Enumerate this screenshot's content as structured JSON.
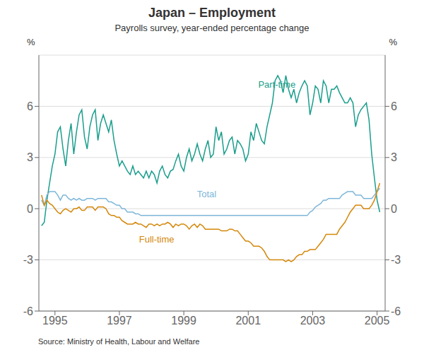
{
  "chart_data": {
    "type": "line",
    "title": "Japan – Employment",
    "subtitle": "Payrolls survey, year-ended percentage change",
    "source": "Source: Ministry of Health, Labour and Welfare",
    "ylabel": "%",
    "y2label": "%",
    "xlim": [
      1994.5,
      2005.25
    ],
    "xticks": [
      1995,
      1997,
      1999,
      2001,
      2003,
      2005
    ],
    "ylim": [
      -6,
      9
    ],
    "yticks": [
      -6,
      -3,
      0,
      3,
      6
    ],
    "y2lim": [
      -6,
      9
    ],
    "y2ticks": [
      -6,
      -3,
      0,
      3,
      6
    ],
    "grid": true,
    "x": [
      1994.583,
      1994.667,
      1994.75,
      1994.833,
      1994.917,
      1995.0,
      1995.083,
      1995.167,
      1995.25,
      1995.333,
      1995.417,
      1995.5,
      1995.583,
      1995.667,
      1995.75,
      1995.833,
      1995.917,
      1996.0,
      1996.083,
      1996.167,
      1996.25,
      1996.333,
      1996.417,
      1996.5,
      1996.583,
      1996.667,
      1996.75,
      1996.833,
      1996.917,
      1997.0,
      1997.083,
      1997.167,
      1997.25,
      1997.333,
      1997.417,
      1997.5,
      1997.583,
      1997.667,
      1997.75,
      1997.833,
      1997.917,
      1998.0,
      1998.083,
      1998.167,
      1998.25,
      1998.333,
      1998.417,
      1998.5,
      1998.583,
      1998.667,
      1998.75,
      1998.833,
      1998.917,
      1999.0,
      1999.083,
      1999.167,
      1999.25,
      1999.333,
      1999.417,
      1999.5,
      1999.583,
      1999.667,
      1999.75,
      1999.833,
      1999.917,
      2000.0,
      2000.083,
      2000.167,
      2000.25,
      2000.333,
      2000.417,
      2000.5,
      2000.583,
      2000.667,
      2000.75,
      2000.833,
      2000.917,
      2001.0,
      2001.083,
      2001.167,
      2001.25,
      2001.333,
      2001.417,
      2001.5,
      2001.583,
      2001.667,
      2001.75,
      2001.833,
      2001.917,
      2002.0,
      2002.083,
      2002.167,
      2002.25,
      2002.333,
      2002.417,
      2002.5,
      2002.583,
      2002.667,
      2002.75,
      2002.833,
      2002.917,
      2003.0,
      2003.083,
      2003.167,
      2003.25,
      2003.333,
      2003.417,
      2003.5,
      2003.583,
      2003.667,
      2003.75,
      2003.833,
      2003.917,
      2004.0,
      2004.083,
      2004.167,
      2004.25,
      2004.333,
      2004.417,
      2004.5,
      2004.583,
      2004.667,
      2004.75,
      2004.833,
      2004.917,
      2005.0,
      2005.083
    ],
    "series": [
      {
        "name": "Part-time",
        "color": "#1a9e8c",
        "values": [
          -1.0,
          -0.8,
          0.5,
          1.5,
          2.5,
          3.2,
          4.5,
          4.8,
          3.5,
          2.5,
          4.0,
          5.0,
          3.2,
          4.5,
          5.5,
          5.8,
          4.2,
          3.5,
          4.8,
          5.5,
          5.8,
          4.0,
          5.0,
          5.5,
          5.0,
          4.5,
          5.2,
          4.0,
          3.2,
          2.5,
          2.8,
          2.5,
          2.2,
          2.0,
          2.5,
          2.0,
          2.2,
          2.0,
          1.8,
          2.2,
          1.8,
          2.2,
          2.0,
          1.5,
          2.2,
          2.5,
          2.0,
          1.8,
          2.2,
          2.3,
          2.8,
          3.2,
          2.5,
          2.2,
          3.0,
          3.5,
          2.8,
          3.2,
          3.8,
          3.2,
          2.8,
          3.5,
          4.0,
          3.0,
          3.2,
          4.8,
          4.0,
          4.5,
          3.2,
          3.5,
          4.0,
          4.2,
          3.2,
          4.0,
          3.8,
          3.5,
          2.8,
          3.2,
          4.5,
          4.0,
          5.0,
          4.5,
          4.0,
          3.8,
          4.8,
          5.5,
          6.2,
          7.5,
          7.8,
          7.5,
          6.8,
          7.8,
          7.0,
          6.5,
          7.0,
          6.2,
          6.8,
          7.2,
          7.5,
          7.2,
          5.5,
          6.2,
          7.2,
          7.0,
          6.2,
          7.5,
          7.2,
          6.2,
          7.0,
          7.0,
          7.2,
          6.8,
          6.5,
          6.2,
          6.2,
          6.5,
          6.2,
          4.8,
          5.5,
          5.8,
          6.0,
          6.2,
          5.2,
          3.2,
          1.8,
          0.5,
          -0.2
        ]
      },
      {
        "name": "Total",
        "color": "#7EB6D9",
        "values": [
          0.5,
          0.2,
          0.8,
          1.0,
          1.0,
          1.0,
          0.8,
          0.5,
          0.8,
          0.8,
          0.6,
          0.5,
          0.6,
          0.5,
          0.6,
          0.5,
          0.5,
          0.6,
          0.6,
          0.6,
          0.5,
          0.6,
          0.6,
          0.6,
          0.6,
          0.4,
          0.4,
          0.3,
          0.2,
          0.2,
          0.0,
          0.0,
          -0.2,
          -0.2,
          -0.2,
          -0.3,
          -0.3,
          -0.4,
          -0.4,
          -0.4,
          -0.4,
          -0.4,
          -0.4,
          -0.4,
          -0.4,
          -0.4,
          -0.4,
          -0.4,
          -0.4,
          -0.4,
          -0.4,
          -0.4,
          -0.4,
          -0.4,
          -0.4,
          -0.4,
          -0.4,
          -0.4,
          -0.4,
          -0.4,
          -0.4,
          -0.4,
          -0.4,
          -0.4,
          -0.4,
          -0.4,
          -0.4,
          -0.4,
          -0.4,
          -0.4,
          -0.4,
          -0.4,
          -0.4,
          -0.4,
          -0.4,
          -0.4,
          -0.4,
          -0.4,
          -0.4,
          -0.4,
          -0.4,
          -0.4,
          -0.4,
          -0.4,
          -0.4,
          -0.4,
          -0.4,
          -0.4,
          -0.4,
          -0.4,
          -0.4,
          -0.4,
          -0.4,
          -0.4,
          -0.4,
          -0.4,
          -0.4,
          -0.4,
          -0.4,
          -0.4,
          -0.2,
          -0.1,
          0.1,
          0.2,
          0.3,
          0.5,
          0.5,
          0.6,
          0.6,
          0.6,
          0.6,
          0.6,
          0.8,
          0.9,
          1.0,
          1.0,
          1.0,
          0.8,
          0.8,
          0.8,
          0.6,
          0.6,
          0.6,
          0.6,
          0.8,
          1.0,
          1.2
        ]
      },
      {
        "name": "Full-time",
        "color": "#D4870A",
        "values": [
          0.8,
          0.2,
          0.5,
          0.3,
          0.2,
          0.0,
          -0.2,
          -0.3,
          -0.1,
          0.0,
          -0.1,
          -0.2,
          0.0,
          0.0,
          0.1,
          -0.1,
          -0.1,
          0.1,
          0.1,
          0.1,
          -0.1,
          0.1,
          0.1,
          0.1,
          0.0,
          -0.3,
          -0.4,
          -0.4,
          -0.5,
          -0.5,
          -0.7,
          -0.8,
          -0.9,
          -0.9,
          -0.9,
          -0.8,
          -0.9,
          -0.9,
          -1.0,
          -1.1,
          -0.9,
          -0.9,
          -1.0,
          -0.9,
          -1.0,
          -0.9,
          -0.9,
          -0.8,
          -0.9,
          -1.1,
          -0.9,
          -1.0,
          -0.9,
          -0.9,
          -1.0,
          -1.2,
          -1.0,
          -0.9,
          -1.1,
          -0.9,
          -1.0,
          -1.2,
          -1.2,
          -1.2,
          -1.2,
          -1.2,
          -1.2,
          -1.3,
          -1.3,
          -1.3,
          -1.2,
          -1.2,
          -1.3,
          -1.3,
          -1.5,
          -1.7,
          -1.9,
          -1.9,
          -2.0,
          -2.2,
          -2.2,
          -2.2,
          -2.3,
          -2.5,
          -2.8,
          -3.0,
          -3.0,
          -3.0,
          -3.0,
          -3.0,
          -3.0,
          -3.1,
          -3.0,
          -3.1,
          -3.0,
          -2.8,
          -2.7,
          -2.7,
          -2.5,
          -2.5,
          -2.4,
          -2.4,
          -2.4,
          -2.2,
          -2.0,
          -1.8,
          -1.5,
          -1.5,
          -1.5,
          -1.5,
          -1.5,
          -1.2,
          -1.0,
          -0.8,
          -0.5,
          -0.2,
          0.0,
          0.2,
          0.2,
          0.2,
          0.0,
          0.0,
          0.0,
          0.2,
          0.5,
          1.0,
          1.5
        ]
      }
    ],
    "annotations": [
      {
        "text": "Part-time",
        "x": 2001.2,
        "y": 7.3
      },
      {
        "text": "Total",
        "x": 1999.3,
        "y": 0.85
      },
      {
        "text": "Full-time",
        "x": 1997.5,
        "y": -1.8
      }
    ]
  }
}
